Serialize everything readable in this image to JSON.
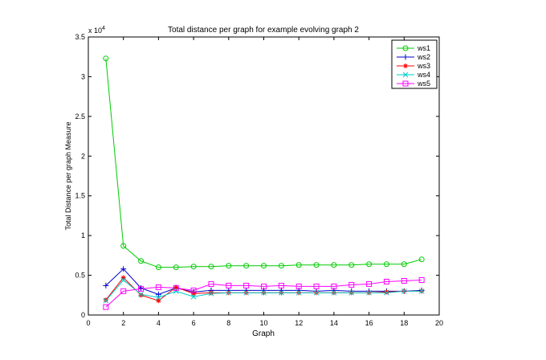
{
  "chart_data": {
    "type": "line",
    "title": "Total distance per graph for example evolving graph 2",
    "xlabel": "Graph",
    "ylabel": "Total Distance per graph Measure",
    "y_multiplier_base": "x 10",
    "y_multiplier_exp": "4",
    "xlim": [
      0,
      20
    ],
    "ylim": [
      0,
      3.5
    ],
    "xticks": [
      0,
      2,
      4,
      6,
      8,
      10,
      12,
      14,
      16,
      18,
      20
    ],
    "yticks": [
      0,
      0.5,
      1,
      1.5,
      2,
      2.5,
      3,
      3.5
    ],
    "ytick_labels": [
      "0",
      "0.5",
      "1",
      "1.5",
      "2",
      "2.5",
      "3",
      "3.5"
    ],
    "grid": false,
    "legend_position": "top-right",
    "x": [
      1,
      2,
      3,
      4,
      5,
      6,
      7,
      8,
      9,
      10,
      11,
      12,
      13,
      14,
      15,
      16,
      17,
      18,
      19
    ],
    "series": [
      {
        "name": "ws1",
        "color": "#00cc00",
        "marker": "circle",
        "values": [
          3.23,
          0.87,
          0.68,
          0.6,
          0.6,
          0.61,
          0.61,
          0.62,
          0.62,
          0.62,
          0.62,
          0.63,
          0.63,
          0.63,
          0.63,
          0.64,
          0.64,
          0.64,
          0.7
        ]
      },
      {
        "name": "ws2",
        "color": "#0000cc",
        "marker": "plus",
        "values": [
          0.37,
          0.58,
          0.34,
          0.26,
          0.34,
          0.29,
          0.31,
          0.31,
          0.31,
          0.31,
          0.31,
          0.31,
          0.3,
          0.31,
          0.3,
          0.3,
          0.3,
          0.3,
          0.31
        ]
      },
      {
        "name": "ws3",
        "color": "#ff0000",
        "marker": "asterisk",
        "values": [
          0.19,
          0.47,
          0.25,
          0.18,
          0.35,
          0.27,
          0.28,
          0.28,
          0.28,
          0.28,
          0.28,
          0.28,
          0.28,
          0.28,
          0.28,
          0.28,
          0.29,
          0.3,
          0.3
        ]
      },
      {
        "name": "ws4",
        "color": "#00cccc",
        "marker": "x",
        "values": [
          0.18,
          0.44,
          0.26,
          0.22,
          0.3,
          0.23,
          0.27,
          0.28,
          0.28,
          0.28,
          0.28,
          0.28,
          0.28,
          0.28,
          0.28,
          0.28,
          0.28,
          0.3,
          0.3
        ]
      },
      {
        "name": "ws5",
        "color": "#ff00ff",
        "marker": "square",
        "values": [
          0.1,
          0.3,
          0.33,
          0.35,
          0.34,
          0.31,
          0.39,
          0.37,
          0.37,
          0.36,
          0.37,
          0.36,
          0.36,
          0.36,
          0.38,
          0.39,
          0.42,
          0.43,
          0.44
        ]
      }
    ]
  }
}
